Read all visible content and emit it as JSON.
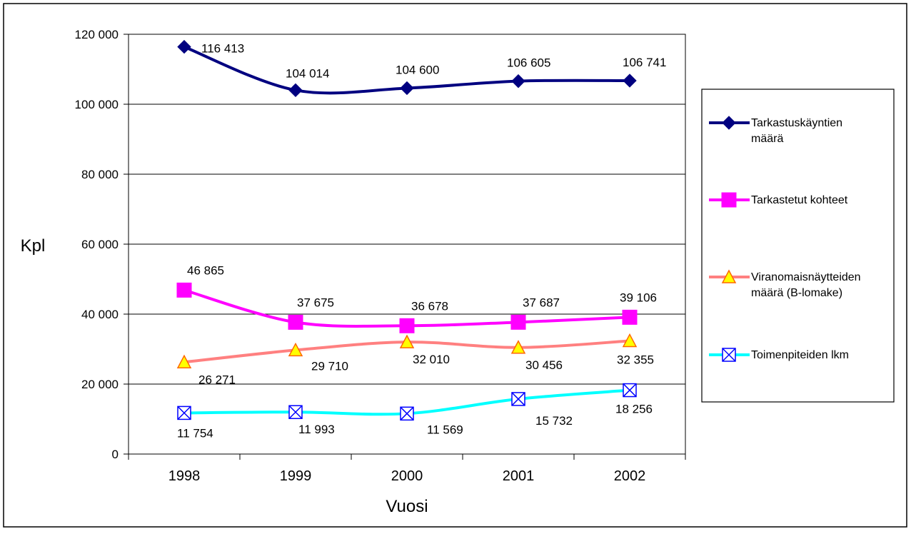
{
  "chart_data": {
    "type": "line",
    "xlabel": "Vuosi",
    "ylabel": "Kpl",
    "ylim": [
      0,
      120000
    ],
    "yticks": [
      0,
      20000,
      40000,
      60000,
      80000,
      100000,
      120000
    ],
    "ytick_labels": [
      "0",
      "20 000",
      "40 000",
      "60 000",
      "80 000",
      "100 000",
      "120 000"
    ],
    "categories": [
      "1998",
      "1999",
      "2000",
      "2001",
      "2002"
    ],
    "grid": true,
    "legend_position": "right",
    "series": [
      {
        "name_lines": [
          "Tarkastuskäyntien",
          "määrä"
        ],
        "values": [
          116413,
          104014,
          104600,
          106605,
          106741
        ],
        "labels": [
          "116 413",
          "104 014",
          "104 600",
          "106 605",
          "106 741"
        ],
        "color": "#000080",
        "marker": "diamond",
        "marker_fill": "#000080"
      },
      {
        "name_lines": [
          "Tarkastetut kohteet"
        ],
        "values": [
          46865,
          37675,
          36678,
          37687,
          39106
        ],
        "labels": [
          "46 865",
          "37 675",
          "36 678",
          "37 687",
          "39 106"
        ],
        "color": "#ff00ff",
        "marker": "square",
        "marker_fill": "#ff00ff"
      },
      {
        "name_lines": [
          "Viranomaisnäytteiden",
          "määrä (B-lomake)"
        ],
        "values": [
          26271,
          29710,
          32010,
          30456,
          32355
        ],
        "labels": [
          "26 271",
          "29 710",
          "32 010",
          "30 456",
          "32 355"
        ],
        "color": "#ff8080",
        "marker": "triangle",
        "marker_fill": "#ffff00"
      },
      {
        "name_lines": [
          "Toimenpiteiden lkm"
        ],
        "values": [
          11754,
          11993,
          11569,
          15732,
          18256
        ],
        "labels": [
          "11 754",
          "11 993",
          "11 569",
          "15 732",
          "18 256"
        ],
        "color": "#00ffff",
        "marker": "boxx",
        "marker_fill": "#0000ff"
      }
    ]
  }
}
